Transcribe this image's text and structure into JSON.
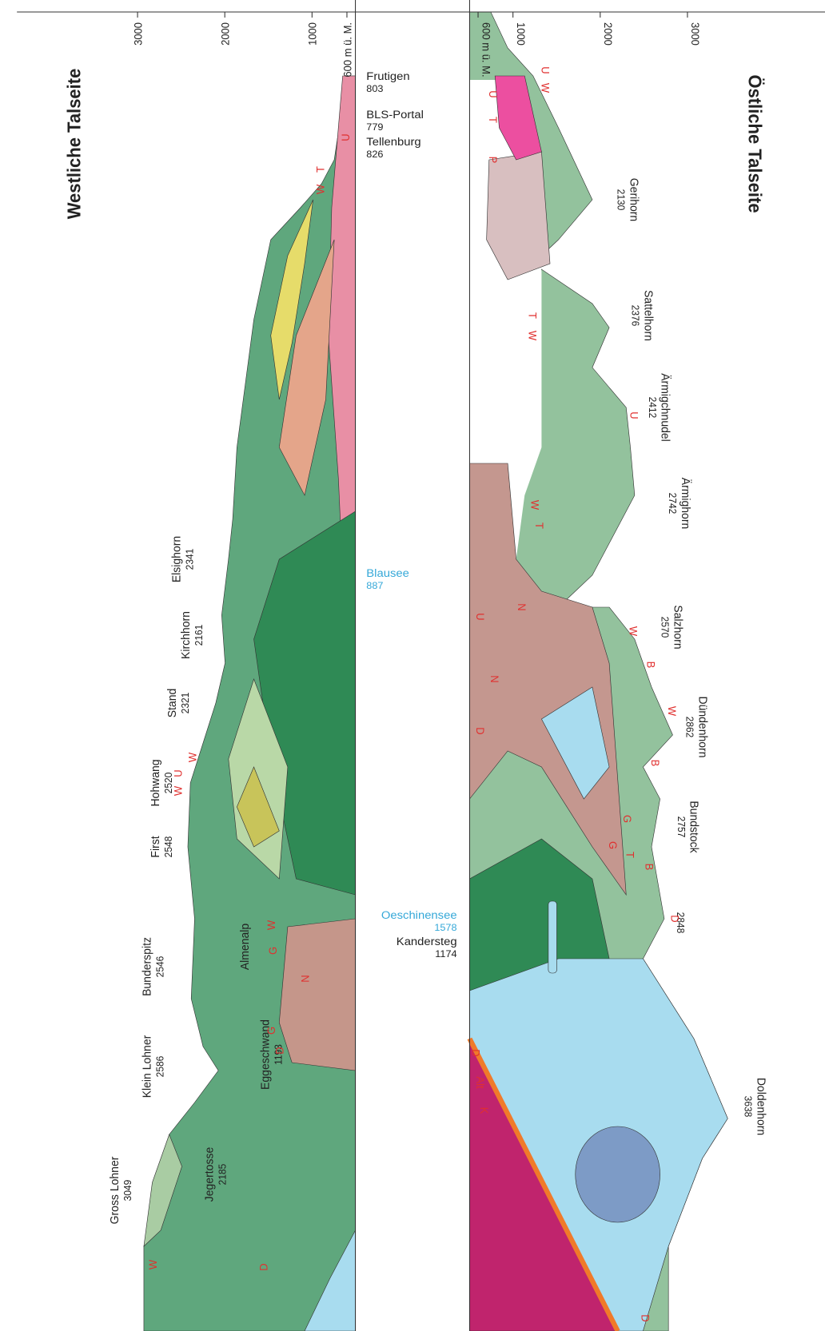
{
  "west_title": "Westliche Talseite",
  "east_title": "Östliche Talseite",
  "west_axis": {
    "ticks": [
      {
        "value": 600,
        "label": "600 m ü. M."
      },
      1000,
      2000,
      3000
    ]
  },
  "east_axis": {
    "ticks": [
      {
        "value": 600,
        "label": "600 m ü. M."
      },
      1000,
      2000,
      3000
    ]
  },
  "west_places": [
    {
      "name": "Gross Lohner",
      "elevation": 3049
    },
    {
      "name": "Jegertosse",
      "elevation": 2185
    },
    {
      "name": "Klein Lohner",
      "elevation": 2586
    },
    {
      "name": "Bunderspitz",
      "elevation": 2546
    },
    {
      "name": "First",
      "elevation": 2548
    },
    {
      "name": "Hohwang",
      "elevation": 2520
    },
    {
      "name": "Stand",
      "elevation": 2321
    },
    {
      "name": "Kirchhorn",
      "elevation": 2161
    },
    {
      "name": "Elsighorn",
      "elevation": 2341
    },
    {
      "name": "Almenalp"
    },
    {
      "name": "Eggeschwand",
      "elevation": 1193
    }
  ],
  "east_places": [
    {
      "name": "Gerihorn",
      "elevation": 2130
    },
    {
      "name": "Sattelhorn",
      "elevation": 2376
    },
    {
      "name": "Ärmigchnudel",
      "elevation": 2412
    },
    {
      "name": "Ärmighorn",
      "elevation": 2742
    },
    {
      "name": "Salzhorn",
      "elevation": 2570
    },
    {
      "name": "Dündenhorn",
      "elevation": 2862
    },
    {
      "name": "Bundstock",
      "elevation": 2757
    },
    {
      "elevation": 2848
    },
    {
      "name": "Doldenhorn",
      "elevation": 3638
    }
  ],
  "valley_places": [
    {
      "name": "Frutigen",
      "elevation": 803
    },
    {
      "name": "BLS-Portal",
      "elevation": 779
    },
    {
      "name": "Tellenburg",
      "elevation": 826
    },
    {
      "name": "Blausee",
      "elevation": 887
    },
    {
      "name": "Oeschinensee",
      "elevation": 1578
    },
    {
      "name": "Kandersteg",
      "elevation": 1174
    }
  ],
  "west_codes": [
    "W",
    "T",
    "U",
    "W",
    "U",
    "W",
    "G",
    "W",
    "N",
    "G",
    "D",
    "W",
    "D"
  ],
  "east_codes": [
    "U",
    "W",
    "U",
    "T",
    "P",
    "T",
    "W",
    "U",
    "W",
    "T",
    "N",
    "U",
    "N",
    "D",
    "W",
    "B",
    "W",
    "B",
    "G",
    "G",
    "T",
    "B",
    "D",
    "D",
    "Alt",
    "K",
    "D"
  ]
}
